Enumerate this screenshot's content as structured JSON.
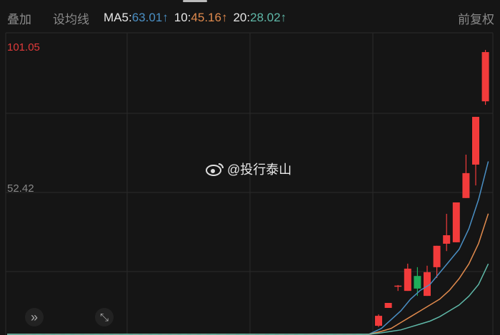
{
  "toolbar": {
    "overlay": "叠加",
    "set_ma": "设均线",
    "ma5_label": "MA5",
    "ma5_value": "63.01",
    "ma10_label": "10",
    "ma10_value": "45.16",
    "ma20_label": "20",
    "ma20_value": "28.02",
    "arrow": "↑",
    "adjust": "前复权"
  },
  "colors": {
    "up": "#f23b3b",
    "down": "#1fae5a",
    "ma5": "#4a8fc4",
    "ma10": "#e08a4d",
    "ma20": "#5fb8a8",
    "grid": "#2a2a2a"
  },
  "axis": {
    "max_label": "101.05",
    "mid_label": "52.42"
  },
  "watermark": "@投行泰山",
  "icons": {
    "expand": "double-chevron-right-icon",
    "fullscreen": "expand-arrows-icon"
  },
  "chart_data": {
    "type": "candlestick",
    "ylim": [
      5.7,
      101.05
    ],
    "y_ticks": [
      101.05,
      52.42
    ],
    "flat_candles": {
      "count": 36,
      "price": 4.0
    },
    "candles": [
      {
        "o": 6.9,
        "h": 10.8,
        "l": 6.5,
        "c": 10.3
      },
      {
        "o": 13.0,
        "h": 14.7,
        "l": 13.0,
        "c": 14.7
      },
      {
        "o": 20.6,
        "h": 20.8,
        "l": 18.8,
        "c": 20.6
      },
      {
        "o": 18.8,
        "h": 28.1,
        "l": 18.8,
        "c": 26.4
      },
      {
        "o": 23.9,
        "h": 26.9,
        "l": 17.1,
        "c": 19.6
      },
      {
        "o": 17.1,
        "h": 27.4,
        "l": 17.1,
        "c": 25.2
      },
      {
        "o": 26.9,
        "h": 34.2,
        "l": 23.2,
        "c": 34.2
      },
      {
        "o": 34.9,
        "h": 45.1,
        "l": 32.4,
        "c": 37.8
      },
      {
        "o": 35.4,
        "h": 49.0,
        "l": 35.4,
        "c": 49.0
      },
      {
        "o": 50.5,
        "h": 65.3,
        "l": 50.5,
        "c": 59.0
      },
      {
        "o": 61.9,
        "h": 78.2,
        "l": 54.8,
        "c": 78.2
      },
      {
        "o": 83.5,
        "h": 101.05,
        "l": 82.3,
        "c": 100.3
      }
    ],
    "ma5": [
      6,
      9,
      12,
      16,
      19,
      21,
      25,
      29,
      33,
      40,
      50,
      63.01
    ],
    "ma10": [
      5,
      6,
      8,
      10,
      12,
      14,
      16,
      19,
      23,
      28,
      35,
      45.16
    ],
    "ma20": [
      4.5,
      5,
      5.5,
      6.5,
      7.5,
      8.5,
      10,
      12,
      14,
      17,
      21,
      28.02
    ]
  }
}
